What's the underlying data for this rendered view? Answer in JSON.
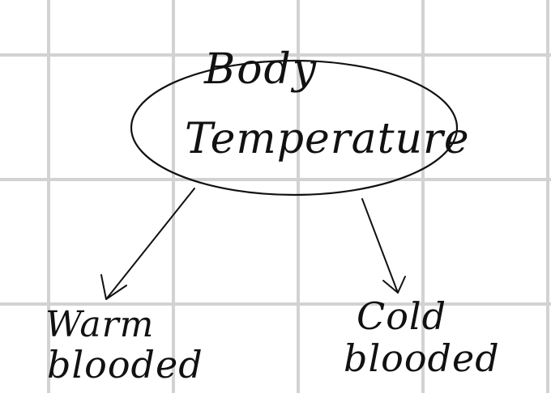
{
  "diagram": {
    "root": {
      "line1": "Body",
      "line2": "Temperature"
    },
    "branches": [
      {
        "line1": "Warm",
        "line2": "blooded"
      },
      {
        "line1": "Cold",
        "line2": "blooded"
      }
    ]
  },
  "colors": {
    "ink": "#111111",
    "grid": "#d2d2d2",
    "paper": "#ffffff"
  }
}
